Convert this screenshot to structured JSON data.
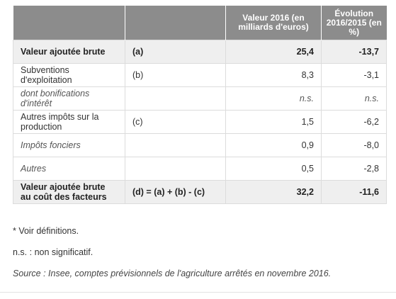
{
  "table": {
    "headers": [
      "",
      "",
      "Valeur 2016 (en milliards d'euros)",
      "Évolution 2016/2015 (en %)"
    ],
    "rows": [
      {
        "label": "Valeur ajoutée brute",
        "code": "(a)",
        "value": "25,4",
        "change": "-13,7"
      },
      {
        "label": "Subventions d'exploitation",
        "code": "(b)",
        "value": "8,3",
        "change": "-3,1"
      },
      {
        "label": "dont bonifications d'intérêt",
        "code": "",
        "value": "n.s.",
        "change": "n.s."
      },
      {
        "label": "Autres impôts sur la production",
        "code": "(c)",
        "value": "1,5",
        "change": "-6,2"
      },
      {
        "label": "Impôts fonciers",
        "code": "",
        "value": "0,9",
        "change": "-8,0"
      },
      {
        "label": "Autres",
        "code": "",
        "value": "0,5",
        "change": "-2,8"
      },
      {
        "label": "Valeur ajoutée brute au coût des facteurs",
        "code": "(d) = (a) + (b) - (c)",
        "value": "32,2",
        "change": "-11,6"
      }
    ]
  },
  "notes": {
    "definitions": "* Voir définitions.",
    "ns": "n.s. : non significatif.",
    "source": "Source : Insee, comptes prévisionnels de l'agriculture arrêtés en novembre 2016."
  }
}
